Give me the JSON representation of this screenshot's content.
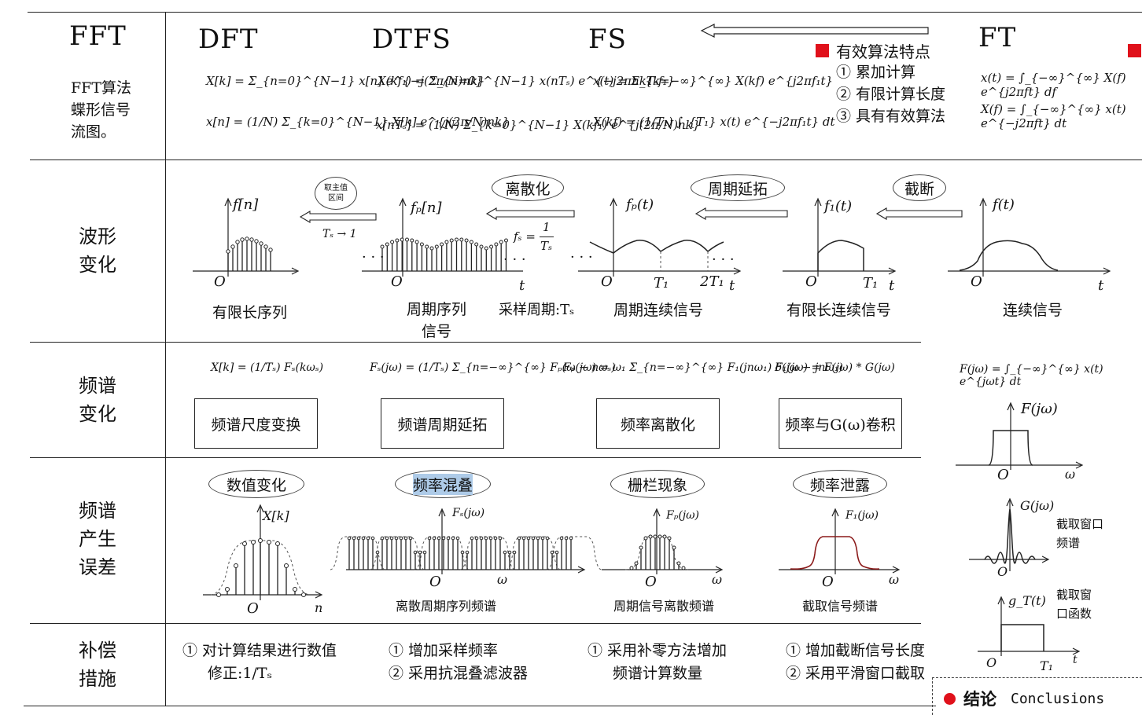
{
  "header": {
    "fft": "FFT",
    "fft_desc": [
      "FFT算法",
      "蝶形信号",
      "流图。"
    ],
    "dft": "DFT",
    "dtfs": "DTFS",
    "fs": "FS",
    "ft": "FT",
    "dft_f1": "X[k] = Σ_{n=0}^{N−1} x[n] e^{−j(2π/N)nk}",
    "dft_f2": "x[n] = (1/N) Σ_{k=0}^{N−1} X[k] e^{j(2π/N)nk}",
    "dtfs_f1": "X(kf₁) = Σ_{n=0}^{N−1} x(nTₛ) e^{−j2πnkTₛf₁}",
    "dtfs_f2": "x[nTₛ] = (1/N) Σ_{k=0}^{N−1} X(kf₁) e^{j(2π/N)nk}",
    "fs_f1": "x(t) = Σ_{k=−∞}^{∞} X(kf) e^{j2πf₁t}",
    "fs_f2": "X(kf) = (1/T₁) ∫_{T₁} x(t) e^{−j2πf₁t} dt",
    "ft_f1": "x(t) = ∫_{−∞}^{∞} X(f) e^{j2πft} df",
    "ft_f2": "X(f) = ∫_{−∞}^{∞} x(t) e^{−j2πft} dt",
    "features_title": "有效算法特点",
    "features": [
      "① 累加计算",
      "② 有限计算长度",
      "③ 具有有效算法"
    ]
  },
  "rows": {
    "waveform": "波形\n变化",
    "spectrum": "频谱\n变化",
    "error": "频谱\n产生\n误差",
    "compensation": "补偿\n措施"
  },
  "waveform": {
    "oval_main": "取主值\n区间",
    "cond_main": "Tₛ → 1",
    "oval_discrete": "离散化",
    "cond_discrete_lhs": "fₛ =",
    "cond_discrete_num": "1",
    "cond_discrete_den": "Tₛ",
    "oval_periodic": "周期延拓",
    "oval_trunc": "截断",
    "labels": [
      "有限长序列",
      "周期序列\n信号",
      "采样周期:Tₛ",
      "周期连续信号",
      "有限长连续信号",
      "连续信号"
    ],
    "fn": "f[n]",
    "fpn": "fₚ[n]",
    "fpt": "fₚ(t)",
    "f1t": "f₁(t)",
    "ft": "f(t)",
    "o": "O",
    "t": "t",
    "T1": "T₁",
    "2T1": "2T₁",
    "dots": "· · ·"
  },
  "spectrum": {
    "f1": "X[k] = (1/Tₛ) Fₛ(kωₛ)",
    "f2": "Fₛ(jω) = (1/Tₛ) Σ_{n=−∞}^{∞} Fₚ(ω − nωₛ)",
    "f3": "Fₚ(jω) = ω₁ Σ_{n=−∞}^{∞} F₁(jnω₁) δ(jω − jnω₁)",
    "f4": "F₁(jω) = F(jω) * G(jω)",
    "f5": "F(jω) = ∫_{−∞}^{∞} x(t) e^{jωt} dt",
    "box1": "频谱尺度变换",
    "box2": "频谱周期延拓",
    "box3": "频率离散化",
    "box4": "频率与G(ω)卷积",
    "Fjw": "F(jω)",
    "o": "O",
    "w": "ω"
  },
  "error": {
    "oval1": "数值变化",
    "oval2": "频率混叠",
    "oval3": "栅栏现象",
    "oval4": "频率泄露",
    "xk": "X[k]",
    "fsjw": "Fₛ(jω)",
    "fpjw": "Fₚ(jω)",
    "f1jw": "F₁(jω)",
    "cap2": "离散周期序列频谱",
    "cap3": "周期信号离散频谱",
    "cap4": "截取信号频谱",
    "gjw": "G(jω)",
    "gcap": "截取窗口\n频谱",
    "gt": "g_T(t)",
    "gtcap": "截取窗\n口函数",
    "o": "O",
    "n": "n",
    "w": "ω",
    "t": "t",
    "T1": "T₁"
  },
  "compensation": {
    "c1": [
      "① 对计算结果进行数值",
      "修正:1/Tₛ"
    ],
    "c2": [
      "① 增加采样频率",
      "② 采用抗混叠滤波器"
    ],
    "c3": [
      "① 采用补零方法增加",
      "频谱计算数量"
    ],
    "c4": [
      "① 增加截断信号长度",
      "② 采用平滑窗口截取"
    ]
  },
  "footer": {
    "title": "结论",
    "subtitle": "Conclusions"
  },
  "colors": {
    "accent_red": "#e0111b",
    "highlight": "#aecbe8",
    "line": "#222222"
  }
}
